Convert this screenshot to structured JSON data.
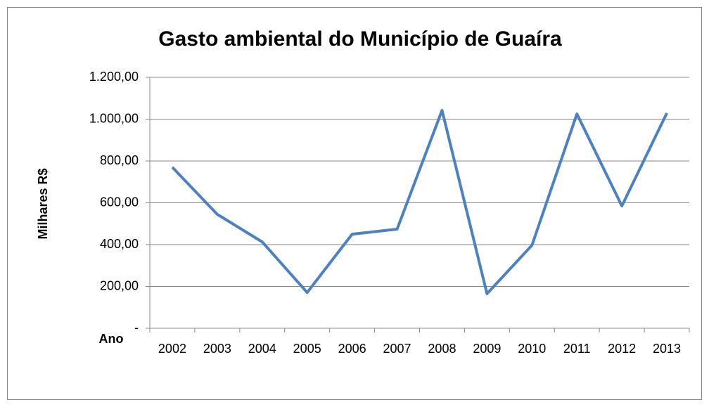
{
  "chart_data": {
    "type": "line",
    "title": "Gasto ambiental do Município de Guaíra",
    "y_label": "Milhares R$",
    "x_label": "Ano",
    "categories": [
      "2002",
      "2003",
      "2004",
      "2005",
      "2006",
      "2007",
      "2008",
      "2009",
      "2010",
      "2011",
      "2012",
      "2013"
    ],
    "series": [
      {
        "name": "Gasto ambiental",
        "color": "#4f81bd",
        "values": [
          770,
          545,
          413,
          171,
          450,
          474,
          1042,
          165,
          397,
          1025,
          585,
          1029
        ]
      }
    ],
    "ylim": [
      0,
      1200
    ],
    "yticks": [
      {
        "value": 0,
        "label": "-"
      },
      {
        "value": 200,
        "label": "200,00"
      },
      {
        "value": 400,
        "label": "400,00"
      },
      {
        "value": 600,
        "label": "600,00"
      },
      {
        "value": 800,
        "label": "800,00"
      },
      {
        "value": 1000,
        "label": "1.000,00"
      },
      {
        "value": 1200,
        "label": "1.200,00"
      }
    ],
    "grid": true,
    "legend": false
  }
}
